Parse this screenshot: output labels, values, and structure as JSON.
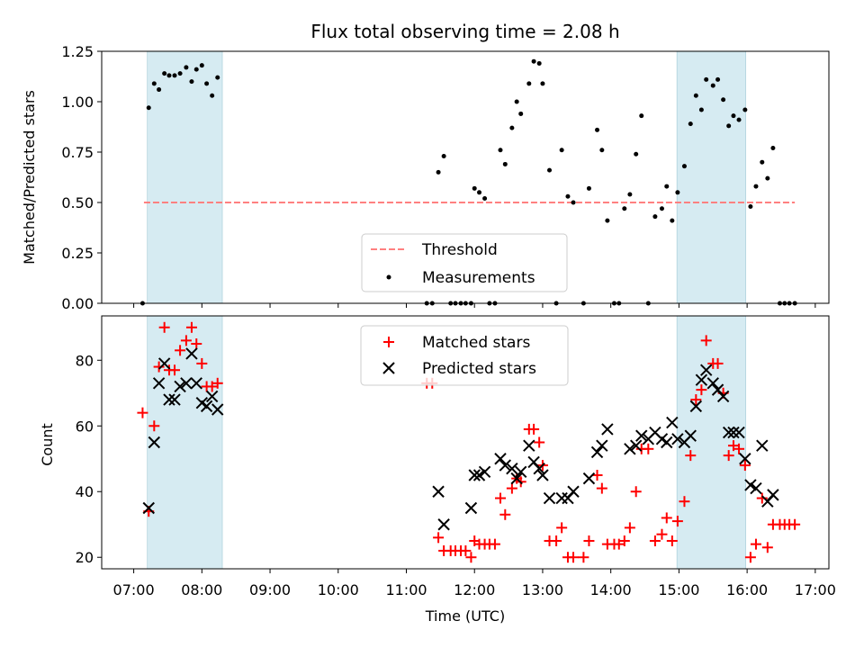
{
  "chart_data": [
    {
      "type": "scatter",
      "title": "Flux total observing time = 2.08 h",
      "xlabel": "",
      "ylabel": "Matched/Predicted stars",
      "xlim_hours": [
        6.53,
        17.2
      ],
      "ylim": [
        0,
        1.25
      ],
      "yticks": [
        0,
        0.25,
        0.5,
        0.75,
        1.0,
        1.25
      ],
      "ytick_labels": [
        "0.00",
        "0.25",
        "0.50",
        "0.75",
        "1.00",
        "1.25"
      ],
      "shaded_intervals_hours": [
        [
          7.2,
          8.3
        ],
        [
          14.97,
          15.98
        ]
      ],
      "threshold": {
        "name": "Threshold",
        "value": 0.5,
        "x_range_hours": [
          7.15,
          16.7
        ],
        "color": "#ff8080"
      },
      "legend": {
        "placement": "lower-center",
        "entries": [
          "Threshold",
          "Measurements"
        ]
      },
      "series": [
        {
          "name": "Measurements",
          "marker": "dot",
          "color": "#000000",
          "points": [
            [
              7.13,
              0.0
            ],
            [
              7.22,
              0.97
            ],
            [
              7.3,
              1.09
            ],
            [
              7.37,
              1.06
            ],
            [
              7.45,
              1.14
            ],
            [
              7.52,
              1.13
            ],
            [
              7.6,
              1.13
            ],
            [
              7.68,
              1.14
            ],
            [
              7.77,
              1.17
            ],
            [
              7.85,
              1.1
            ],
            [
              7.92,
              1.16
            ],
            [
              8.0,
              1.18
            ],
            [
              8.07,
              1.09
            ],
            [
              8.15,
              1.03
            ],
            [
              8.23,
              1.12
            ],
            [
              11.3,
              0.0
            ],
            [
              11.38,
              0.0
            ],
            [
              11.47,
              0.65
            ],
            [
              11.55,
              0.73
            ],
            [
              11.65,
              0.0
            ],
            [
              11.72,
              0.0
            ],
            [
              11.8,
              0.0
            ],
            [
              11.87,
              0.0
            ],
            [
              11.95,
              0.0
            ],
            [
              12.0,
              0.57
            ],
            [
              12.07,
              0.55
            ],
            [
              12.15,
              0.52
            ],
            [
              12.22,
              0.0
            ],
            [
              12.3,
              0.0
            ],
            [
              12.38,
              0.76
            ],
            [
              12.45,
              0.69
            ],
            [
              12.55,
              0.87
            ],
            [
              12.62,
              1.0
            ],
            [
              12.68,
              0.94
            ],
            [
              12.8,
              1.09
            ],
            [
              12.87,
              1.2
            ],
            [
              12.95,
              1.19
            ],
            [
              13.0,
              1.09
            ],
            [
              13.1,
              0.66
            ],
            [
              13.2,
              0.0
            ],
            [
              13.28,
              0.76
            ],
            [
              13.37,
              0.53
            ],
            [
              13.45,
              0.5
            ],
            [
              13.6,
              0.0
            ],
            [
              13.68,
              0.57
            ],
            [
              13.8,
              0.86
            ],
            [
              13.87,
              0.76
            ],
            [
              13.95,
              0.41
            ],
            [
              14.05,
              0.0
            ],
            [
              14.12,
              0.0
            ],
            [
              14.2,
              0.47
            ],
            [
              14.28,
              0.54
            ],
            [
              14.37,
              0.74
            ],
            [
              14.45,
              0.93
            ],
            [
              14.55,
              0.0
            ],
            [
              14.65,
              0.43
            ],
            [
              14.75,
              0.47
            ],
            [
              14.82,
              0.58
            ],
            [
              14.9,
              0.41
            ],
            [
              14.98,
              0.55
            ],
            [
              15.08,
              0.68
            ],
            [
              15.17,
              0.89
            ],
            [
              15.25,
              1.03
            ],
            [
              15.33,
              0.96
            ],
            [
              15.4,
              1.11
            ],
            [
              15.5,
              1.08
            ],
            [
              15.57,
              1.11
            ],
            [
              15.65,
              1.01
            ],
            [
              15.73,
              0.88
            ],
            [
              15.8,
              0.93
            ],
            [
              15.88,
              0.91
            ],
            [
              15.97,
              0.96
            ],
            [
              16.05,
              0.48
            ],
            [
              16.13,
              0.58
            ],
            [
              16.22,
              0.7
            ],
            [
              16.3,
              0.62
            ],
            [
              16.38,
              0.77
            ],
            [
              16.48,
              0.0
            ],
            [
              16.55,
              0.0
            ],
            [
              16.62,
              0.0
            ],
            [
              16.7,
              0.0
            ]
          ]
        }
      ]
    },
    {
      "type": "scatter",
      "title": "",
      "xlabel": "Time (UTC)",
      "ylabel": "Count",
      "xlim_hours": [
        6.53,
        17.2
      ],
      "ylim": [
        16.5,
        93.5
      ],
      "yticks": [
        20,
        40,
        60,
        80
      ],
      "ytick_labels": [
        "20",
        "40",
        "60",
        "80"
      ],
      "xticks_hours": [
        7,
        8,
        9,
        10,
        11,
        12,
        13,
        14,
        15,
        16,
        17
      ],
      "xtick_labels": [
        "07:00",
        "08:00",
        "09:00",
        "10:00",
        "11:00",
        "12:00",
        "13:00",
        "14:00",
        "15:00",
        "16:00",
        "17:00"
      ],
      "shaded_intervals_hours": [
        [
          7.2,
          8.3
        ],
        [
          14.97,
          15.98
        ]
      ],
      "legend": {
        "placement": "upper-center",
        "entries": [
          "Matched stars",
          "Predicted stars"
        ]
      },
      "series": [
        {
          "name": "Matched stars",
          "marker": "plus",
          "color": "#ff0000",
          "points": [
            [
              7.13,
              64
            ],
            [
              7.22,
              34
            ],
            [
              7.3,
              60
            ],
            [
              7.37,
              78
            ],
            [
              7.45,
              90
            ],
            [
              7.52,
              77
            ],
            [
              7.6,
              77
            ],
            [
              7.68,
              83
            ],
            [
              7.77,
              86
            ],
            [
              7.85,
              90
            ],
            [
              7.92,
              85
            ],
            [
              8.0,
              79
            ],
            [
              8.07,
              72
            ],
            [
              8.15,
              72
            ],
            [
              8.23,
              73
            ],
            [
              11.3,
              73
            ],
            [
              11.38,
              73
            ],
            [
              11.47,
              26
            ],
            [
              11.55,
              22
            ],
            [
              11.65,
              22
            ],
            [
              11.72,
              22
            ],
            [
              11.8,
              22
            ],
            [
              11.87,
              22
            ],
            [
              11.95,
              20
            ],
            [
              12.0,
              25
            ],
            [
              12.07,
              24
            ],
            [
              12.15,
              24
            ],
            [
              12.22,
              24
            ],
            [
              12.3,
              24
            ],
            [
              12.38,
              38
            ],
            [
              12.45,
              33
            ],
            [
              12.55,
              41
            ],
            [
              12.62,
              44
            ],
            [
              12.68,
              43
            ],
            [
              12.8,
              59
            ],
            [
              12.87,
              59
            ],
            [
              12.95,
              55
            ],
            [
              13.0,
              48
            ],
            [
              13.1,
              25
            ],
            [
              13.2,
              25
            ],
            [
              13.28,
              29
            ],
            [
              13.37,
              20
            ],
            [
              13.45,
              20
            ],
            [
              13.6,
              20
            ],
            [
              13.68,
              25
            ],
            [
              13.8,
              45
            ],
            [
              13.87,
              41
            ],
            [
              13.95,
              24
            ],
            [
              14.05,
              24
            ],
            [
              14.12,
              24
            ],
            [
              14.2,
              25
            ],
            [
              14.28,
              29
            ],
            [
              14.37,
              40
            ],
            [
              14.45,
              53
            ],
            [
              14.55,
              53
            ],
            [
              14.65,
              25
            ],
            [
              14.75,
              27
            ],
            [
              14.82,
              32
            ],
            [
              14.9,
              25
            ],
            [
              14.98,
              31
            ],
            [
              15.08,
              37
            ],
            [
              15.17,
              51
            ],
            [
              15.25,
              68
            ],
            [
              15.33,
              71
            ],
            [
              15.4,
              86
            ],
            [
              15.5,
              79
            ],
            [
              15.57,
              79
            ],
            [
              15.65,
              70
            ],
            [
              15.73,
              51
            ],
            [
              15.8,
              54
            ],
            [
              15.88,
              53
            ],
            [
              15.97,
              48
            ],
            [
              16.05,
              20
            ],
            [
              16.13,
              24
            ],
            [
              16.22,
              38
            ],
            [
              16.3,
              23
            ],
            [
              16.38,
              30
            ],
            [
              16.48,
              30
            ],
            [
              16.55,
              30
            ],
            [
              16.62,
              30
            ],
            [
              16.7,
              30
            ]
          ]
        },
        {
          "name": "Predicted stars",
          "marker": "x",
          "color": "#000000",
          "points": [
            [
              7.22,
              35
            ],
            [
              7.3,
              55
            ],
            [
              7.37,
              73
            ],
            [
              7.45,
              79
            ],
            [
              7.52,
              68
            ],
            [
              7.6,
              68
            ],
            [
              7.68,
              72
            ],
            [
              7.77,
              73
            ],
            [
              7.85,
              82
            ],
            [
              7.92,
              73
            ],
            [
              8.0,
              67
            ],
            [
              8.07,
              66
            ],
            [
              8.15,
              69
            ],
            [
              8.23,
              65
            ],
            [
              11.47,
              40
            ],
            [
              11.55,
              30
            ],
            [
              11.95,
              35
            ],
            [
              12.0,
              45
            ],
            [
              12.07,
              45
            ],
            [
              12.15,
              46
            ],
            [
              12.38,
              50
            ],
            [
              12.45,
              48
            ],
            [
              12.55,
              47
            ],
            [
              12.62,
              44
            ],
            [
              12.68,
              46
            ],
            [
              12.8,
              54
            ],
            [
              12.87,
              49
            ],
            [
              12.95,
              47
            ],
            [
              13.0,
              45
            ],
            [
              13.1,
              38
            ],
            [
              13.28,
              38
            ],
            [
              13.37,
              38
            ],
            [
              13.45,
              40
            ],
            [
              13.68,
              44
            ],
            [
              13.8,
              52
            ],
            [
              13.87,
              54
            ],
            [
              13.95,
              59
            ],
            [
              14.28,
              53
            ],
            [
              14.37,
              54
            ],
            [
              14.45,
              57
            ],
            [
              14.55,
              56
            ],
            [
              14.65,
              58
            ],
            [
              14.75,
              56
            ],
            [
              14.82,
              55
            ],
            [
              14.9,
              61
            ],
            [
              14.98,
              56
            ],
            [
              15.08,
              55
            ],
            [
              15.17,
              57
            ],
            [
              15.25,
              66
            ],
            [
              15.33,
              74
            ],
            [
              15.4,
              77
            ],
            [
              15.5,
              73
            ],
            [
              15.57,
              71
            ],
            [
              15.65,
              69
            ],
            [
              15.73,
              58
            ],
            [
              15.8,
              58
            ],
            [
              15.88,
              58
            ],
            [
              15.97,
              50
            ],
            [
              16.05,
              42
            ],
            [
              16.13,
              41
            ],
            [
              16.22,
              54
            ],
            [
              16.3,
              37
            ],
            [
              16.38,
              39
            ]
          ]
        }
      ]
    }
  ]
}
